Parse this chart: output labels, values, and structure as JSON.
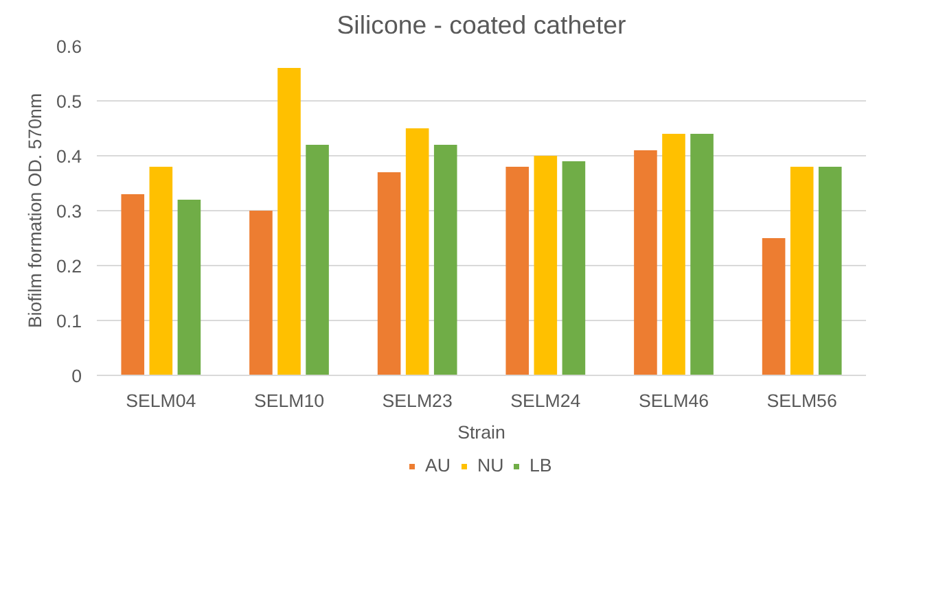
{
  "chart_data": {
    "type": "bar",
    "title": "Silicone - coated catheter",
    "xlabel": "Strain",
    "ylabel": "Biofilm formation OD. 570nm",
    "categories": [
      "SELM04",
      "SELM10",
      "SELM23",
      "SELM24",
      "SELM46",
      "SELM56"
    ],
    "series": [
      {
        "name": "AU",
        "color": "#ed7d31",
        "values": [
          0.33,
          0.3,
          0.37,
          0.38,
          0.41,
          0.25
        ]
      },
      {
        "name": "NU",
        "color": "#ffc000",
        "values": [
          0.38,
          0.56,
          0.45,
          0.4,
          0.44,
          0.38
        ]
      },
      {
        "name": "LB",
        "color": "#70ad47",
        "values": [
          0.32,
          0.42,
          0.42,
          0.39,
          0.44,
          0.38
        ]
      }
    ],
    "ylim": [
      0,
      0.6
    ],
    "yticks": [
      {
        "value": 0,
        "label": "0"
      },
      0.1,
      0.2,
      0.3,
      0.4,
      0.5,
      0.6
    ],
    "grid": "y",
    "legend": "bottom"
  }
}
